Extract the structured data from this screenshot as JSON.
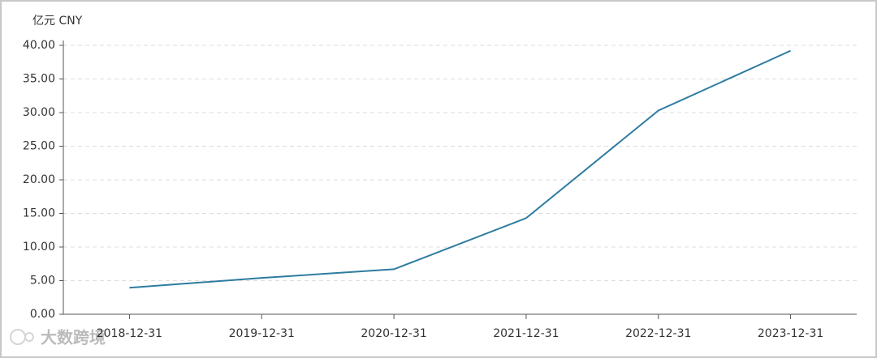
{
  "chart_data": {
    "type": "line",
    "y_unit_label": "亿元  CNY",
    "watermark": "大数跨境",
    "categories": [
      "2018-12-31",
      "2019-12-31",
      "2020-12-31",
      "2021-12-31",
      "2022-12-31",
      "2023-12-31"
    ],
    "series": [
      {
        "color": "#2e7ca0",
        "values": [
          3.95,
          5.4,
          6.7,
          14.3,
          30.3,
          39.2
        ]
      }
    ],
    "ylim": [
      0,
      40
    ],
    "yticks": [
      {
        "value": 0,
        "label": "0.00"
      },
      {
        "value": 5,
        "label": "5.00"
      },
      {
        "value": 10,
        "label": "10.00"
      },
      {
        "value": 15,
        "label": "15.00"
      },
      {
        "value": 20,
        "label": "20.00"
      },
      {
        "value": 25,
        "label": "25.00"
      },
      {
        "value": 30,
        "label": "30.00"
      },
      {
        "value": 35,
        "label": "35.00"
      },
      {
        "value": 40,
        "label": "40.00"
      }
    ],
    "grid": true
  }
}
